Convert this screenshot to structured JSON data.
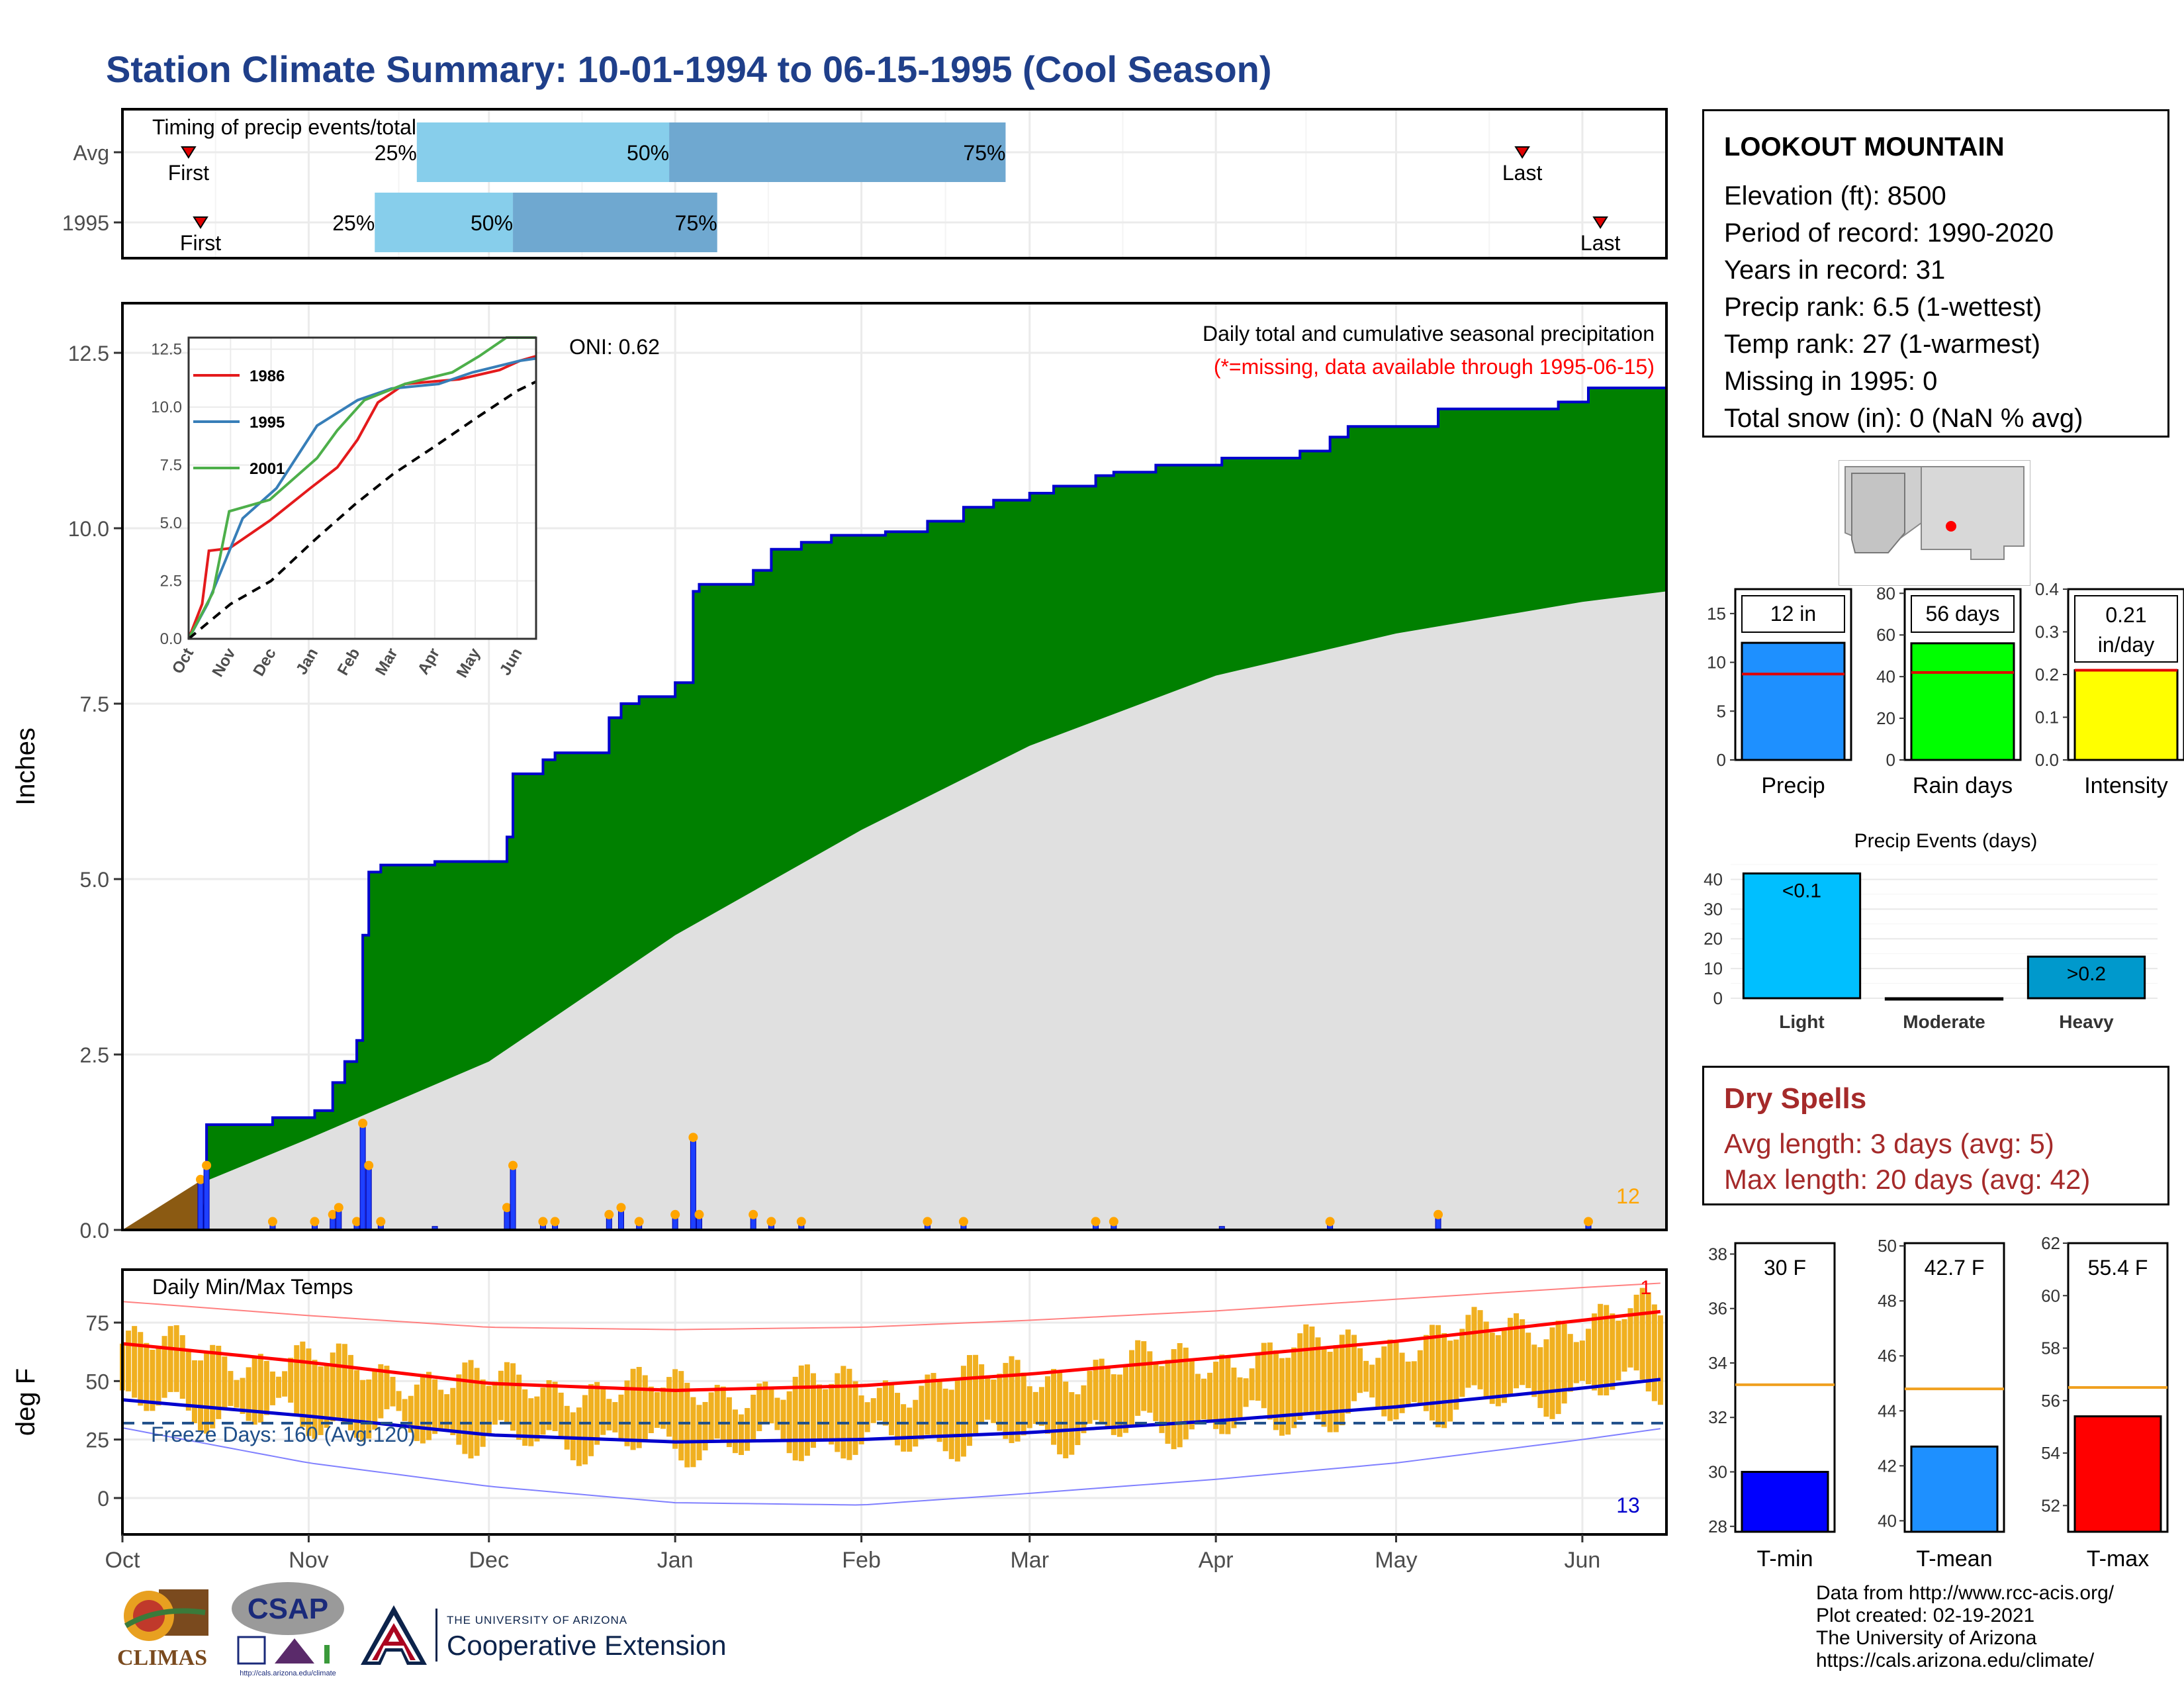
{
  "title": "Station Climate Summary: 10-01-1994 to 06-15-1995 (Cool Season)",
  "station": {
    "name": "LOOKOUT MOUNTAIN",
    "lines": [
      "Elevation (ft): 8500",
      "Period of record: 1990-2020",
      "Years in record: 31",
      "Precip rank: 6.5 (1-wettest)",
      "Temp rank: 27 (1-warmest)",
      "Missing in 1995: 0",
      "Total snow (in): 0 (NaN % avg)"
    ]
  },
  "dry_spells": {
    "title": "Dry Spells",
    "avg": "Avg length: 3 days (avg: 5)",
    "max": "Max length: 20 days (avg: 42)"
  },
  "credits": [
    "Data from http://www.rcc-acis.org/",
    "Plot created: 02-19-2021",
    "The University of Arizona",
    "https://cals.arizona.edu/climate/"
  ],
  "logos": {
    "climas": "CLIMAS",
    "csap": "CSAP",
    "csap_url": "http://cals.arizona.edu/climate",
    "ua_small": "THE UNIVERSITY OF ARIZONA",
    "ua_big": "Cooperative Extension"
  },
  "colors": {
    "title": "#1f3f8a",
    "cumulative_fill": "#008000",
    "cumulative_line": "#0000cd",
    "avg_fill": "#e0e0e0",
    "daily_bar": "#1e40ff",
    "tmax_line": "#ff0000",
    "tmin_line": "#0000cd",
    "temp_bar": "#f0b020",
    "timing_light": "#87ceeb",
    "timing_dark": "#6fa8d0",
    "dry_spell": "#a52a2a"
  },
  "chart_data": [
    {
      "id": "timing",
      "type": "bar",
      "title": "Timing of precip events/totals",
      "rows": [
        {
          "label": "Avg",
          "p25": "1994-11-19",
          "p50": "1994-12-31",
          "p75": "1995-02-25",
          "first": "1994-10-12",
          "last": "1995-05-22",
          "first_label": "First",
          "last_label": "Last"
        },
        {
          "label": "1995",
          "p25": "1994-11-12",
          "p50": "1994-12-05",
          "p75": "1995-01-08",
          "first": "1994-10-14",
          "last": "1995-06-04",
          "first_label": "First",
          "last_label": "Last"
        }
      ],
      "pct_labels": [
        "25%",
        "50%",
        "75%"
      ]
    },
    {
      "id": "precip",
      "type": "area",
      "title": "Daily total and cumulative seasonal precipitation",
      "subtitle": "(*=missing, data available through 1995-06-15)",
      "annotation_oni": "ONI: 0.62",
      "ylabel": "Inches",
      "ylim": [
        0,
        13
      ],
      "yticks": [
        "0.0",
        "2.5",
        "5.0",
        "7.5",
        "10.0",
        "12.5"
      ],
      "x_months": [
        "Oct",
        "Nov",
        "Dec",
        "Jan",
        "Feb",
        "Mar",
        "Apr",
        "May",
        "Jun"
      ],
      "corner_label": "12",
      "cumulative_1995": [
        [
          "1994-10-14",
          0.0
        ],
        [
          "1994-10-15",
          1.5
        ],
        [
          "1994-10-26",
          1.6
        ],
        [
          "1994-11-02",
          1.7
        ],
        [
          "1994-11-05",
          2.1
        ],
        [
          "1994-11-07",
          2.4
        ],
        [
          "1994-11-09",
          2.7
        ],
        [
          "1994-11-10",
          4.2
        ],
        [
          "1994-11-11",
          5.1
        ],
        [
          "1994-11-13",
          5.2
        ],
        [
          "1994-11-22",
          5.25
        ],
        [
          "1994-12-04",
          5.6
        ],
        [
          "1994-12-05",
          6.5
        ],
        [
          "1994-12-10",
          6.7
        ],
        [
          "1994-12-12",
          6.8
        ],
        [
          "1994-12-21",
          7.3
        ],
        [
          "1994-12-23",
          7.5
        ],
        [
          "1994-12-26",
          7.6
        ],
        [
          "1995-01-01",
          7.8
        ],
        [
          "1995-01-04",
          9.1
        ],
        [
          "1995-01-05",
          9.2
        ],
        [
          "1995-01-14",
          9.4
        ],
        [
          "1995-01-17",
          9.7
        ],
        [
          "1995-01-22",
          9.8
        ],
        [
          "1995-01-27",
          9.9
        ],
        [
          "1995-02-05",
          9.95
        ],
        [
          "1995-02-12",
          10.1
        ],
        [
          "1995-02-18",
          10.3
        ],
        [
          "1995-02-23",
          10.4
        ],
        [
          "1995-03-01",
          10.5
        ],
        [
          "1995-03-05",
          10.6
        ],
        [
          "1995-03-12",
          10.75
        ],
        [
          "1995-03-15",
          10.8
        ],
        [
          "1995-03-22",
          10.9
        ],
        [
          "1995-04-02",
          11.0
        ],
        [
          "1995-04-15",
          11.1
        ],
        [
          "1995-04-20",
          11.3
        ],
        [
          "1995-04-23",
          11.45
        ],
        [
          "1995-05-08",
          11.7
        ],
        [
          "1995-05-28",
          11.8
        ],
        [
          "1995-06-02",
          12.0
        ],
        [
          "1995-06-15",
          12.0
        ]
      ],
      "cumulative_avg": [
        [
          "1994-10-01",
          0.0
        ],
        [
          "1994-10-15",
          0.7
        ],
        [
          "1994-11-01",
          1.3
        ],
        [
          "1994-12-01",
          2.4
        ],
        [
          "1995-01-01",
          4.2
        ],
        [
          "1995-02-01",
          5.7
        ],
        [
          "1995-03-01",
          6.9
        ],
        [
          "1995-04-01",
          7.9
        ],
        [
          "1995-05-01",
          8.5
        ],
        [
          "1995-06-01",
          8.95
        ],
        [
          "1995-06-15",
          9.1
        ]
      ],
      "daily_1995": [
        [
          "1994-10-14",
          0.7
        ],
        [
          "1994-10-15",
          0.9
        ],
        [
          "1994-10-26",
          0.1
        ],
        [
          "1994-11-02",
          0.1
        ],
        [
          "1994-11-05",
          0.2
        ],
        [
          "1994-11-06",
          0.3
        ],
        [
          "1994-11-09",
          0.1
        ],
        [
          "1994-11-10",
          1.5
        ],
        [
          "1994-11-11",
          0.9
        ],
        [
          "1994-11-13",
          0.1
        ],
        [
          "1994-11-22",
          0.05
        ],
        [
          "1994-12-04",
          0.3
        ],
        [
          "1994-12-05",
          0.9
        ],
        [
          "1994-12-10",
          0.1
        ],
        [
          "1994-12-12",
          0.1
        ],
        [
          "1994-12-21",
          0.2
        ],
        [
          "1994-12-23",
          0.3
        ],
        [
          "1994-12-26",
          0.1
        ],
        [
          "1995-01-01",
          0.2
        ],
        [
          "1995-01-04",
          1.3
        ],
        [
          "1995-01-05",
          0.2
        ],
        [
          "1995-01-14",
          0.2
        ],
        [
          "1995-01-17",
          0.1
        ],
        [
          "1995-01-22",
          0.1
        ],
        [
          "1995-02-12",
          0.1
        ],
        [
          "1995-02-18",
          0.1
        ],
        [
          "1995-03-12",
          0.1
        ],
        [
          "1995-03-15",
          0.1
        ],
        [
          "1995-04-02",
          0.05
        ],
        [
          "1995-04-20",
          0.1
        ],
        [
          "1995-05-08",
          0.2
        ],
        [
          "1995-06-02",
          0.1
        ]
      ],
      "inset": {
        "type": "line",
        "yticks": [
          "0.0",
          "2.5",
          "5.0",
          "7.5",
          "10.0",
          "12.5"
        ],
        "x_months": [
          "Oct",
          "Nov",
          "Dec",
          "Jan",
          "Feb",
          "Mar",
          "Apr",
          "May",
          "Jun"
        ],
        "ylim": [
          0,
          13
        ],
        "series": [
          {
            "name": "1986",
            "color": "#e41a1c",
            "values": [
              [
                0,
                0
              ],
              [
                10,
                1.5
              ],
              [
                15,
                3.8
              ],
              [
                30,
                3.9
              ],
              [
                45,
                4.5
              ],
              [
                60,
                5.1
              ],
              [
                90,
                6.5
              ],
              [
                110,
                7.4
              ],
              [
                125,
                8.6
              ],
              [
                140,
                10.2
              ],
              [
                160,
                11.0
              ],
              [
                200,
                11.2
              ],
              [
                230,
                11.6
              ],
              [
                245,
                12.0
              ],
              [
                257,
                12.2
              ]
            ]
          },
          {
            "name": "1995",
            "color": "#377eb8",
            "values": [
              [
                0,
                0
              ],
              [
                14,
                1.5
              ],
              [
                40,
                5.2
              ],
              [
                65,
                6.5
              ],
              [
                95,
                9.2
              ],
              [
                125,
                10.3
              ],
              [
                150,
                10.8
              ],
              [
                185,
                11.0
              ],
              [
                210,
                11.5
              ],
              [
                245,
                12.0
              ],
              [
                257,
                12.1
              ]
            ]
          },
          {
            "name": "2001",
            "color": "#4daf4a",
            "values": [
              [
                0,
                0
              ],
              [
                18,
                2.0
              ],
              [
                30,
                5.5
              ],
              [
                60,
                6.0
              ],
              [
                95,
                7.8
              ],
              [
                110,
                9.0
              ],
              [
                130,
                10.3
              ],
              [
                160,
                11.0
              ],
              [
                195,
                11.5
              ],
              [
                215,
                12.2
              ],
              [
                235,
                13.0
              ],
              [
                257,
                13.0
              ]
            ]
          },
          {
            "name": "avg",
            "color": "#000000",
            "dashed": true,
            "values": [
              [
                0,
                0
              ],
              [
                31,
                1.5
              ],
              [
                61,
                2.5
              ],
              [
                92,
                4.2
              ],
              [
                123,
                5.8
              ],
              [
                151,
                7.1
              ],
              [
                182,
                8.3
              ],
              [
                212,
                9.5
              ],
              [
                243,
                10.7
              ],
              [
                257,
                11.1
              ]
            ]
          }
        ]
      }
    },
    {
      "id": "temps",
      "type": "line",
      "title": "Daily Min/Max Temps",
      "ylabel": "deg F",
      "ylim": [
        -18,
        92
      ],
      "yticks": [
        "0",
        "25",
        "50",
        "75"
      ],
      "x_months": [
        "Oct",
        "Nov",
        "Dec",
        "Jan",
        "Feb",
        "Mar",
        "Apr",
        "May",
        "Jun"
      ],
      "freeze_label": "Freeze Days: 160 (Avg:120)",
      "freeze_level": 32,
      "corner_top": "1",
      "corner_bottom": "13",
      "avg_tmax": [
        [
          0,
          66
        ],
        [
          31,
          58
        ],
        [
          61,
          49
        ],
        [
          92,
          46
        ],
        [
          123,
          48
        ],
        [
          151,
          53
        ],
        [
          182,
          60
        ],
        [
          212,
          67
        ],
        [
          243,
          76
        ],
        [
          257,
          80
        ]
      ],
      "avg_tmin": [
        [
          0,
          42
        ],
        [
          31,
          35
        ],
        [
          61,
          27
        ],
        [
          92,
          24
        ],
        [
          123,
          25
        ],
        [
          151,
          28
        ],
        [
          182,
          33
        ],
        [
          212,
          39
        ],
        [
          243,
          47
        ],
        [
          257,
          51
        ]
      ],
      "record_max": [
        [
          0,
          84
        ],
        [
          31,
          78
        ],
        [
          61,
          73
        ],
        [
          92,
          72
        ],
        [
          123,
          73
        ],
        [
          151,
          76
        ],
        [
          182,
          80
        ],
        [
          212,
          85
        ],
        [
          243,
          90
        ],
        [
          257,
          92
        ]
      ],
      "record_min": [
        [
          0,
          30
        ],
        [
          31,
          15
        ],
        [
          61,
          5
        ],
        [
          92,
          -2
        ],
        [
          123,
          -3
        ],
        [
          151,
          2
        ],
        [
          182,
          8
        ],
        [
          212,
          15
        ],
        [
          243,
          25
        ],
        [
          257,
          30
        ]
      ]
    },
    {
      "id": "summary_precip",
      "type": "bar",
      "panels": [
        {
          "name": "Precip",
          "label": "12 in",
          "value": 12,
          "avg": 8.8,
          "ymax": 17.5,
          "yticks": [
            "0",
            "5",
            "10",
            "15"
          ],
          "color": "#1e90ff"
        },
        {
          "name": "Rain days",
          "label": "56 days",
          "value": 56,
          "avg": 42,
          "ymax": 82,
          "yticks": [
            "0",
            "20",
            "40",
            "60",
            "80"
          ],
          "color": "#00ff00"
        },
        {
          "name": "Intensity",
          "label": "0.21 in/day",
          "value": 0.21,
          "avg": 0.21,
          "ymax": 0.4,
          "yticks": [
            "0.0",
            "0.1",
            "0.2",
            "0.3",
            "0.4"
          ],
          "color": "#ffff00"
        }
      ]
    },
    {
      "id": "precip_events",
      "type": "bar",
      "title": "Precip Events (days)",
      "categories": [
        "Light",
        "Moderate",
        "Heavy"
      ],
      "values": [
        42,
        0,
        14
      ],
      "bar_labels": [
        "<0.1",
        "",
        ">0.2"
      ],
      "yticks": [
        "0",
        "10",
        "20",
        "30",
        "40"
      ],
      "ymax": 43,
      "colors": [
        "#00bfff",
        "#0080c0",
        "#0099cc"
      ]
    },
    {
      "id": "summary_temps",
      "type": "bar",
      "panels": [
        {
          "name": "T-min",
          "label": "30 F",
          "value": 30,
          "avg": 33.2,
          "ymin": 27.8,
          "ymax": 38.4,
          "yticks": [
            "28",
            "30",
            "32",
            "34",
            "36",
            "38"
          ],
          "color": "#0000ff"
        },
        {
          "name": "T-mean",
          "label": "42.7 F",
          "value": 42.7,
          "avg": 44.8,
          "ymin": 39.6,
          "ymax": 50.1,
          "yticks": [
            "40",
            "42",
            "44",
            "46",
            "48",
            "50"
          ],
          "color": "#1e90ff"
        },
        {
          "name": "T-max",
          "label": "55.4 F",
          "value": 55.4,
          "avg": 56.5,
          "ymin": 51.0,
          "ymax": 62.0,
          "yticks": [
            "52",
            "54",
            "56",
            "58",
            "60",
            "62"
          ],
          "color": "#ff0000"
        }
      ]
    }
  ]
}
